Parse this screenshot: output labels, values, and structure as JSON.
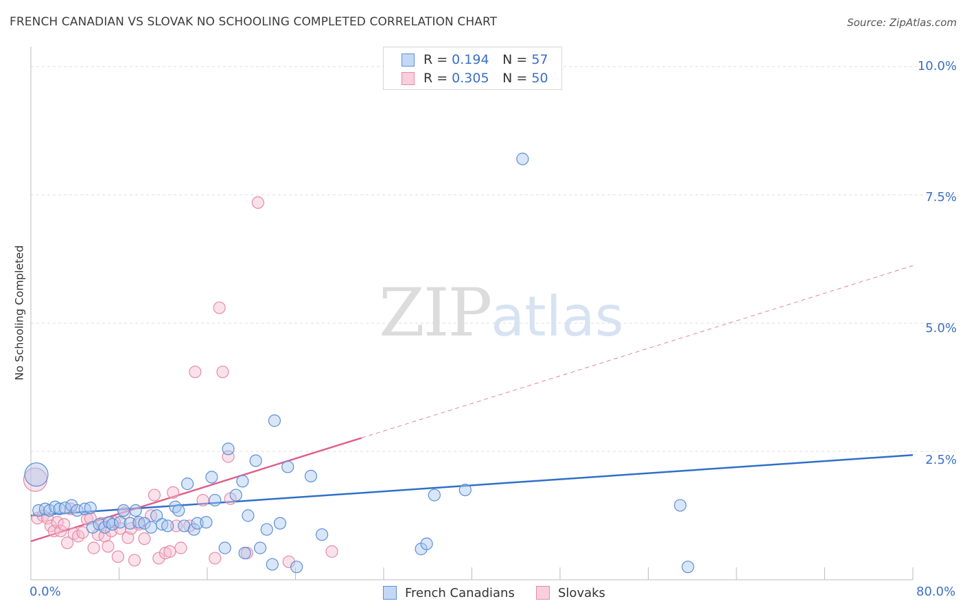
{
  "header": {
    "title": "FRENCH CANADIAN VS SLOVAK NO SCHOOLING COMPLETED CORRELATION CHART",
    "source": "Source: ZipAtlas.com"
  },
  "watermark": {
    "zip": "ZIP",
    "atlas": "atlas"
  },
  "legend": {
    "rows": [
      {
        "r_label": "R =",
        "r_value": "0.194",
        "n_label": "N =",
        "n_value": "57"
      },
      {
        "r_label": "R =",
        "r_value": "0.305",
        "n_label": "N =",
        "n_value": "50"
      }
    ]
  },
  "bottom_legend": {
    "series1": "French Canadians",
    "series2": "Slovaks"
  },
  "colors": {
    "blue_fill": "#a9c8ef",
    "blue_stroke": "#5b8fd6",
    "blue_line": "#2f6fc9",
    "pink_fill": "#f5bfd1",
    "pink_stroke": "#e889a8",
    "pink_line": "#e0608c",
    "grid": "#dddddd",
    "axis_label": "#3a6fc4"
  },
  "chart_data": {
    "type": "scatter",
    "title": "FRENCH CANADIAN VS SLOVAK NO SCHOOLING COMPLETED CORRELATION CHART",
    "xlabel": "",
    "ylabel": "No Schooling Completed",
    "xlim": [
      0,
      80
    ],
    "ylim": [
      0,
      10
    ],
    "x_tick_labels": [
      "0.0%",
      "80.0%"
    ],
    "y_ticks": [
      2.5,
      5.0,
      7.5,
      10.0
    ],
    "y_tick_labels": [
      "2.5%",
      "5.0%",
      "7.5%",
      "10.0%"
    ],
    "series": [
      {
        "name": "French Canadians",
        "R": 0.194,
        "N": 57,
        "trend": {
          "x0": 0,
          "y0": 1.25,
          "x1": 80,
          "y1": 2.43,
          "dashed_after": null
        },
        "points": [
          [
            0.5,
            2.05,
            "large"
          ],
          [
            0.7,
            1.35
          ],
          [
            1.3,
            1.38
          ],
          [
            1.7,
            1.35
          ],
          [
            2.2,
            1.42
          ],
          [
            2.6,
            1.38
          ],
          [
            3.1,
            1.4
          ],
          [
            3.7,
            1.45
          ],
          [
            4.2,
            1.35
          ],
          [
            4.9,
            1.38
          ],
          [
            5.4,
            1.4
          ],
          [
            5.6,
            1.02
          ],
          [
            6.2,
            1.08
          ],
          [
            6.7,
            1.02
          ],
          [
            7.1,
            1.12
          ],
          [
            7.4,
            1.08
          ],
          [
            8.1,
            1.12
          ],
          [
            8.4,
            1.35
          ],
          [
            9.0,
            1.1
          ],
          [
            9.5,
            1.35
          ],
          [
            9.8,
            1.12
          ],
          [
            10.3,
            1.1
          ],
          [
            10.9,
            1.02
          ],
          [
            11.4,
            1.25
          ],
          [
            11.9,
            1.08
          ],
          [
            12.4,
            1.05
          ],
          [
            13.1,
            1.42
          ],
          [
            13.4,
            1.35
          ],
          [
            13.9,
            1.05
          ],
          [
            14.2,
            1.87
          ],
          [
            14.8,
            0.98
          ],
          [
            15.1,
            1.1
          ],
          [
            15.9,
            1.12
          ],
          [
            16.4,
            2.0
          ],
          [
            16.7,
            1.55
          ],
          [
            17.6,
            0.62
          ],
          [
            17.9,
            2.55
          ],
          [
            18.6,
            1.65
          ],
          [
            19.2,
            1.92
          ],
          [
            19.4,
            0.52
          ],
          [
            19.7,
            1.25
          ],
          [
            20.4,
            2.32
          ],
          [
            20.8,
            0.62
          ],
          [
            21.4,
            0.98
          ],
          [
            21.9,
            0.3
          ],
          [
            22.1,
            3.1
          ],
          [
            22.6,
            1.1
          ],
          [
            23.3,
            2.2
          ],
          [
            24.1,
            0.25
          ],
          [
            25.4,
            2.02
          ],
          [
            26.4,
            0.88
          ],
          [
            35.4,
            0.6
          ],
          [
            35.9,
            0.7
          ],
          [
            36.6,
            1.65
          ],
          [
            39.4,
            1.75
          ],
          [
            44.6,
            8.2
          ],
          [
            58.9,
            1.45
          ],
          [
            59.6,
            0.25
          ]
        ]
      },
      {
        "name": "Slovaks",
        "R": 0.305,
        "N": 50,
        "trend": {
          "x0": 0,
          "y0": 0.75,
          "x1": 80,
          "y1": 6.12,
          "solid_until_x": 30
        },
        "points": [
          [
            0.4,
            1.95,
            "large"
          ],
          [
            0.6,
            1.2
          ],
          [
            1.1,
            1.25
          ],
          [
            1.5,
            1.2
          ],
          [
            1.8,
            1.05
          ],
          [
            2.1,
            0.95
          ],
          [
            2.4,
            1.12
          ],
          [
            2.7,
            0.95
          ],
          [
            3.0,
            1.08
          ],
          [
            3.3,
            0.72
          ],
          [
            3.6,
            1.38
          ],
          [
            3.9,
            0.9
          ],
          [
            4.3,
            0.85
          ],
          [
            4.7,
            0.92
          ],
          [
            5.1,
            1.18
          ],
          [
            5.4,
            1.2
          ],
          [
            5.7,
            0.62
          ],
          [
            6.1,
            0.88
          ],
          [
            6.4,
            1.1
          ],
          [
            6.7,
            0.85
          ],
          [
            7.0,
            0.65
          ],
          [
            7.3,
            0.95
          ],
          [
            7.6,
            1.12
          ],
          [
            7.9,
            0.45
          ],
          [
            8.1,
            1.0
          ],
          [
            8.5,
            1.3
          ],
          [
            8.8,
            0.82
          ],
          [
            9.1,
            1.0
          ],
          [
            9.4,
            0.38
          ],
          [
            9.8,
            1.08
          ],
          [
            10.3,
            0.8
          ],
          [
            10.9,
            1.25
          ],
          [
            11.2,
            1.65
          ],
          [
            11.6,
            0.42
          ],
          [
            12.2,
            0.52
          ],
          [
            12.6,
            0.55
          ],
          [
            12.9,
            1.7
          ],
          [
            13.2,
            1.05
          ],
          [
            13.6,
            0.62
          ],
          [
            14.4,
            1.05
          ],
          [
            14.9,
            4.05
          ],
          [
            15.6,
            1.55
          ],
          [
            16.7,
            0.42
          ],
          [
            17.1,
            5.3
          ],
          [
            17.4,
            4.05
          ],
          [
            17.9,
            2.4
          ],
          [
            18.1,
            1.58
          ],
          [
            19.6,
            0.52
          ],
          [
            20.6,
            7.35
          ],
          [
            23.4,
            0.35
          ],
          [
            27.3,
            0.55
          ]
        ]
      }
    ]
  }
}
